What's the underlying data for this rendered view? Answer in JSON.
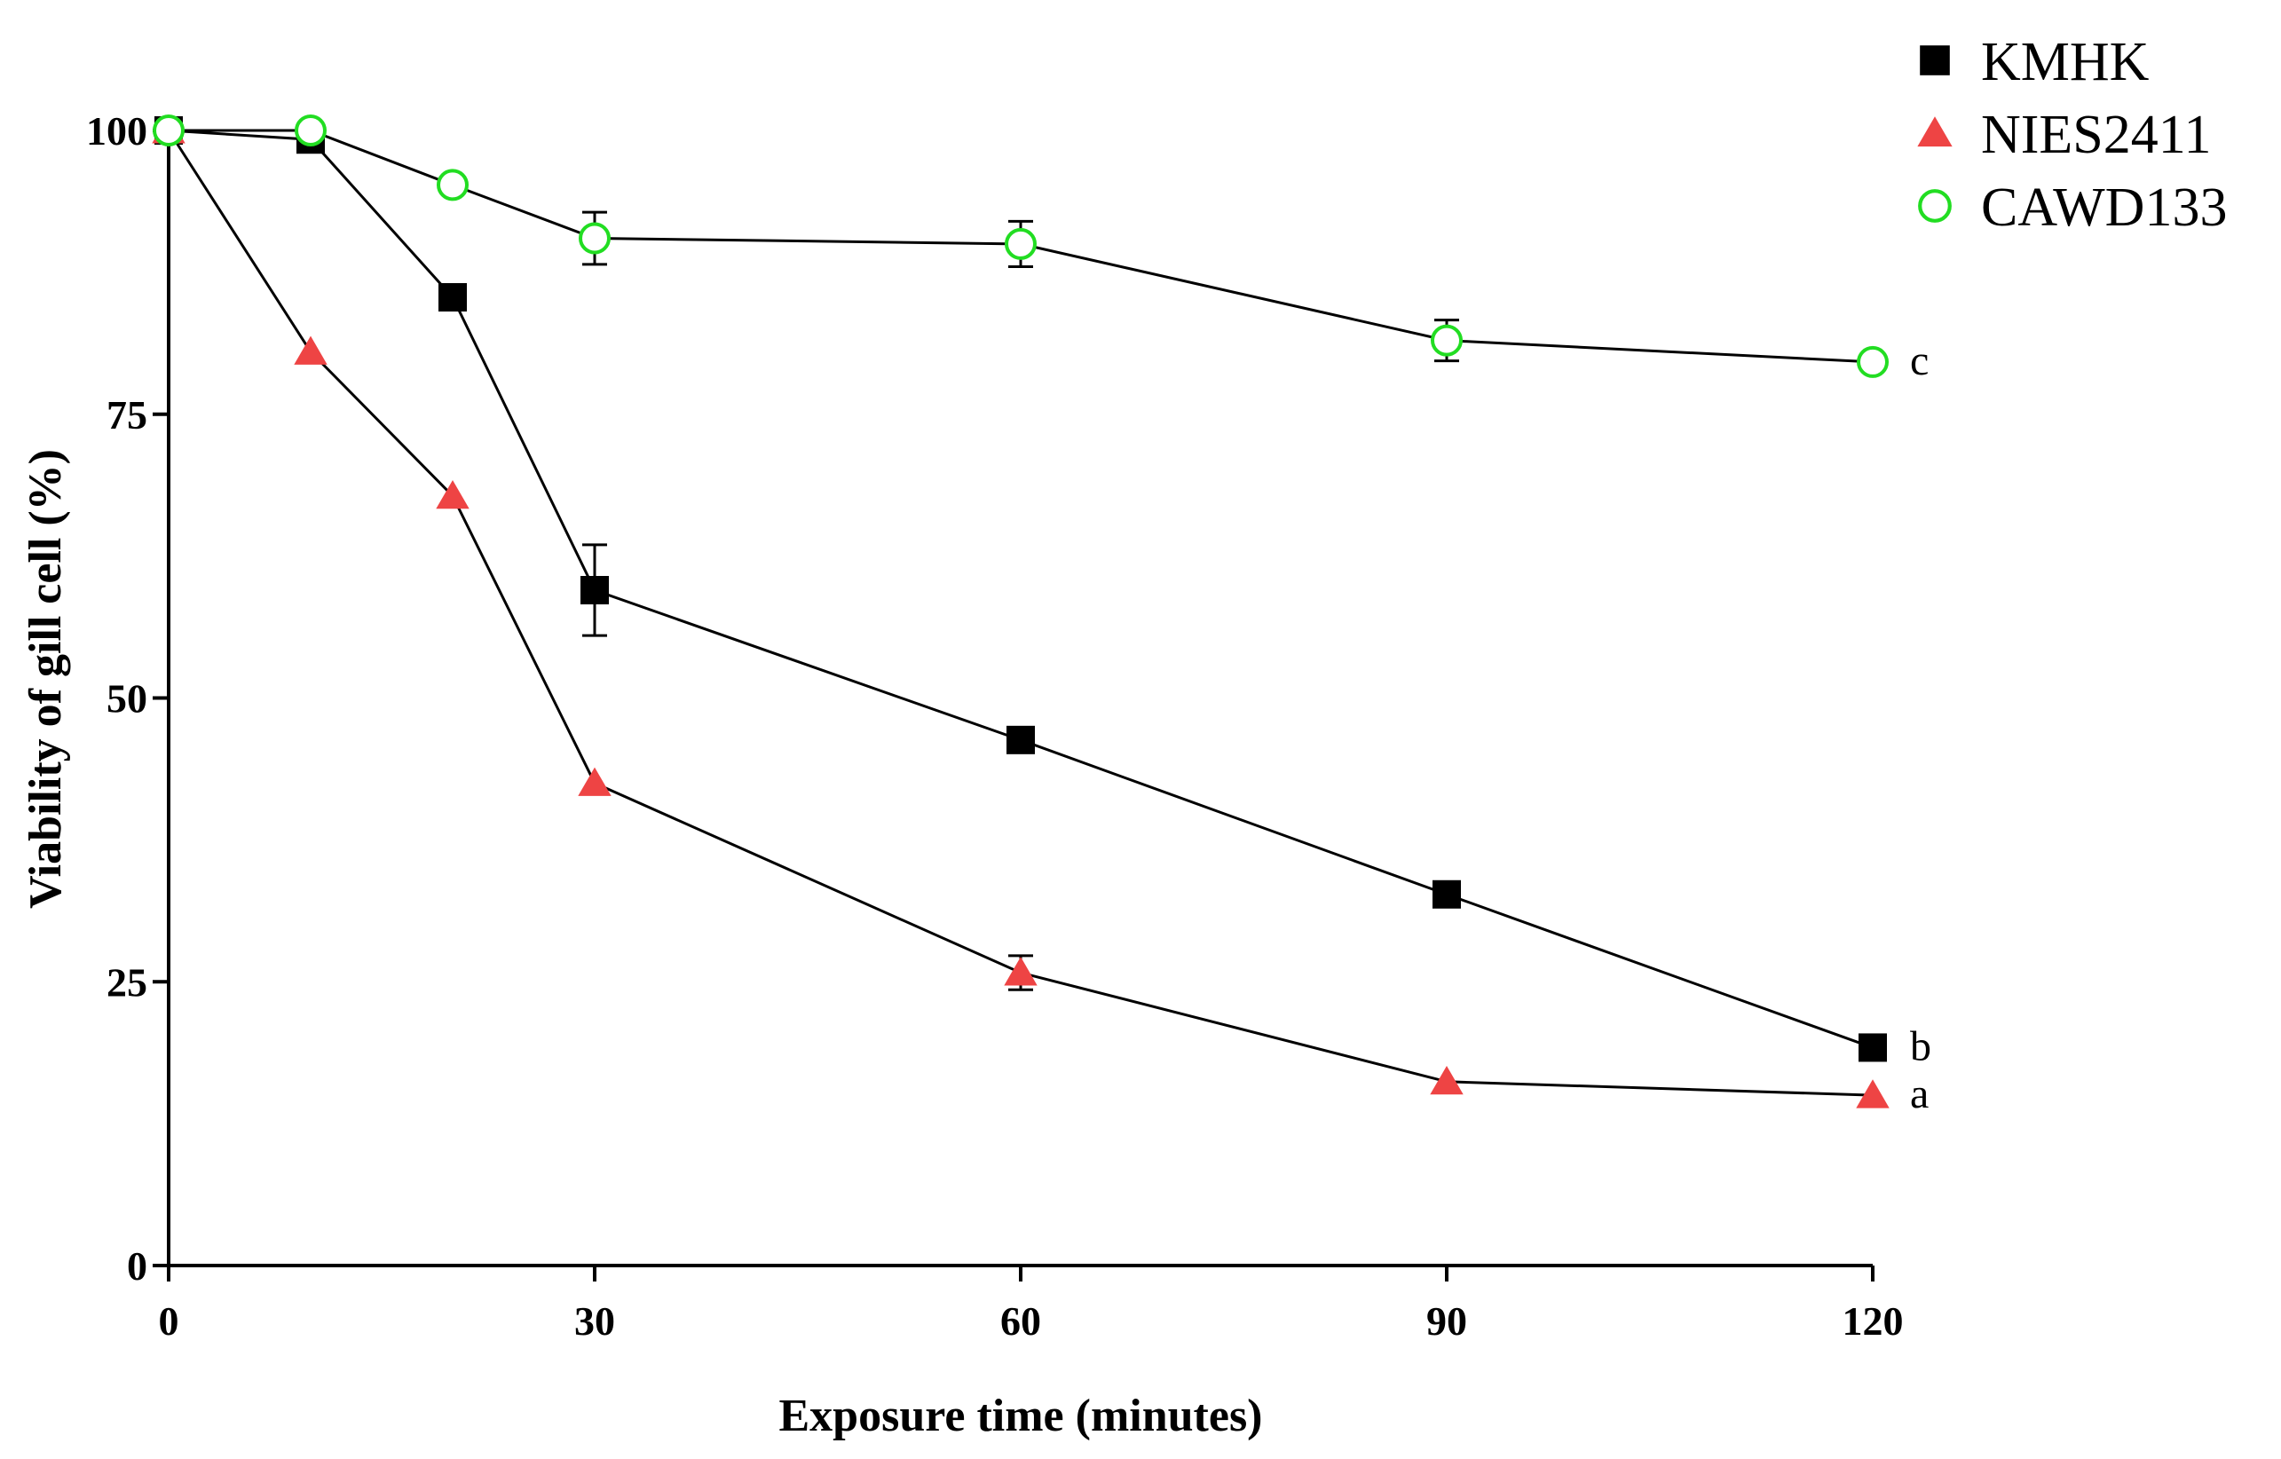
{
  "chart_data": {
    "type": "line",
    "title": "",
    "xlabel": "Exposure time (minutes)",
    "ylabel": "Viability of gill cell (%)",
    "xlim": [
      0,
      120
    ],
    "ylim": [
      0,
      100
    ],
    "xticks": [
      0,
      30,
      60,
      90,
      120
    ],
    "yticks": [
      0,
      25,
      50,
      75,
      100
    ],
    "xtick_labels": [
      "0",
      "30",
      "60",
      "90",
      "120"
    ],
    "ytick_labels": [
      "0",
      "25",
      "50",
      "75",
      "100"
    ],
    "grid": false,
    "legend_position": "top-right",
    "series": [
      {
        "name": "KMHK",
        "marker": "square",
        "color": "#000000",
        "x": [
          0,
          10,
          20,
          30,
          60,
          90,
          120
        ],
        "y": [
          100,
          99.2,
          85.3,
          59.5,
          46.3,
          32.7,
          19.2
        ],
        "err": [
          0,
          0,
          0,
          4.0,
          0,
          0,
          0
        ],
        "significance": "b"
      },
      {
        "name": "NIES2411",
        "marker": "triangle",
        "color": "#ee4444",
        "x": [
          0,
          10,
          20,
          30,
          60,
          90,
          120
        ],
        "y": [
          100,
          80.5,
          67.8,
          42.5,
          25.8,
          16.2,
          15.0
        ],
        "err": [
          0,
          0,
          0,
          0,
          1.5,
          0,
          0
        ],
        "significance": "a"
      },
      {
        "name": "CAWD133",
        "marker": "circle-open",
        "color": "#22dd22",
        "x": [
          0,
          10,
          20,
          30,
          60,
          90,
          120
        ],
        "y": [
          100,
          100,
          95.2,
          90.5,
          90.0,
          81.5,
          79.6
        ],
        "err": [
          0,
          0,
          0,
          2.3,
          2.0,
          1.8,
          0
        ],
        "significance": "c"
      }
    ]
  }
}
